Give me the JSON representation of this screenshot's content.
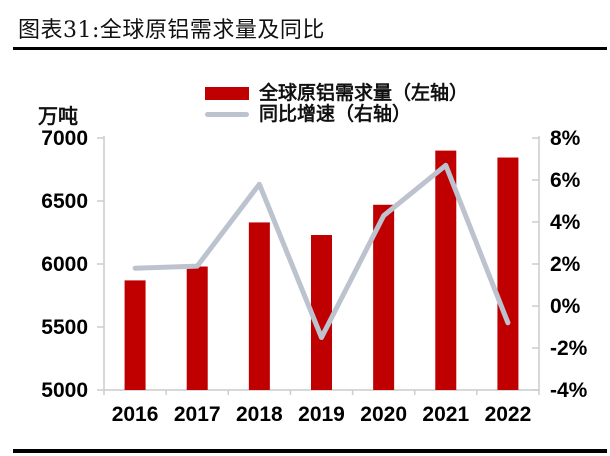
{
  "title": "图表31:全球原铝需求量及同比",
  "legend": {
    "bar_label": "全球原铝需求量（左轴）",
    "line_label": "同比增速（右轴）"
  },
  "colors": {
    "bar": "#c00000",
    "line": "#bcc3cf",
    "axis": "#cccccc",
    "text": "#000000"
  },
  "chart_data": {
    "type": "bar+line",
    "title": "全球原铝需求量及同比",
    "categories": [
      "2016",
      "2017",
      "2018",
      "2019",
      "2020",
      "2021",
      "2022"
    ],
    "series": [
      {
        "name": "全球原铝需求量（左轴）",
        "type": "bar",
        "axis": "left",
        "values": [
          5870,
          5980,
          6330,
          6230,
          6470,
          6900,
          6845
        ]
      },
      {
        "name": "同比增速（右轴）",
        "type": "line",
        "axis": "right",
        "values": [
          1.8,
          1.9,
          5.8,
          -1.5,
          4.3,
          6.7,
          -0.8
        ]
      }
    ],
    "left_axis_unit": "万吨",
    "left_ticks": [
      "7000",
      "6500",
      "6000",
      "5500",
      "5000"
    ],
    "right_ticks": [
      "8%",
      "6%",
      "4%",
      "2%",
      "0%",
      "-2%",
      "-4%"
    ],
    "left_ylim": [
      5000,
      7000
    ],
    "right_ylim": [
      -4,
      8
    ],
    "grid": false,
    "legend_position": "top"
  }
}
